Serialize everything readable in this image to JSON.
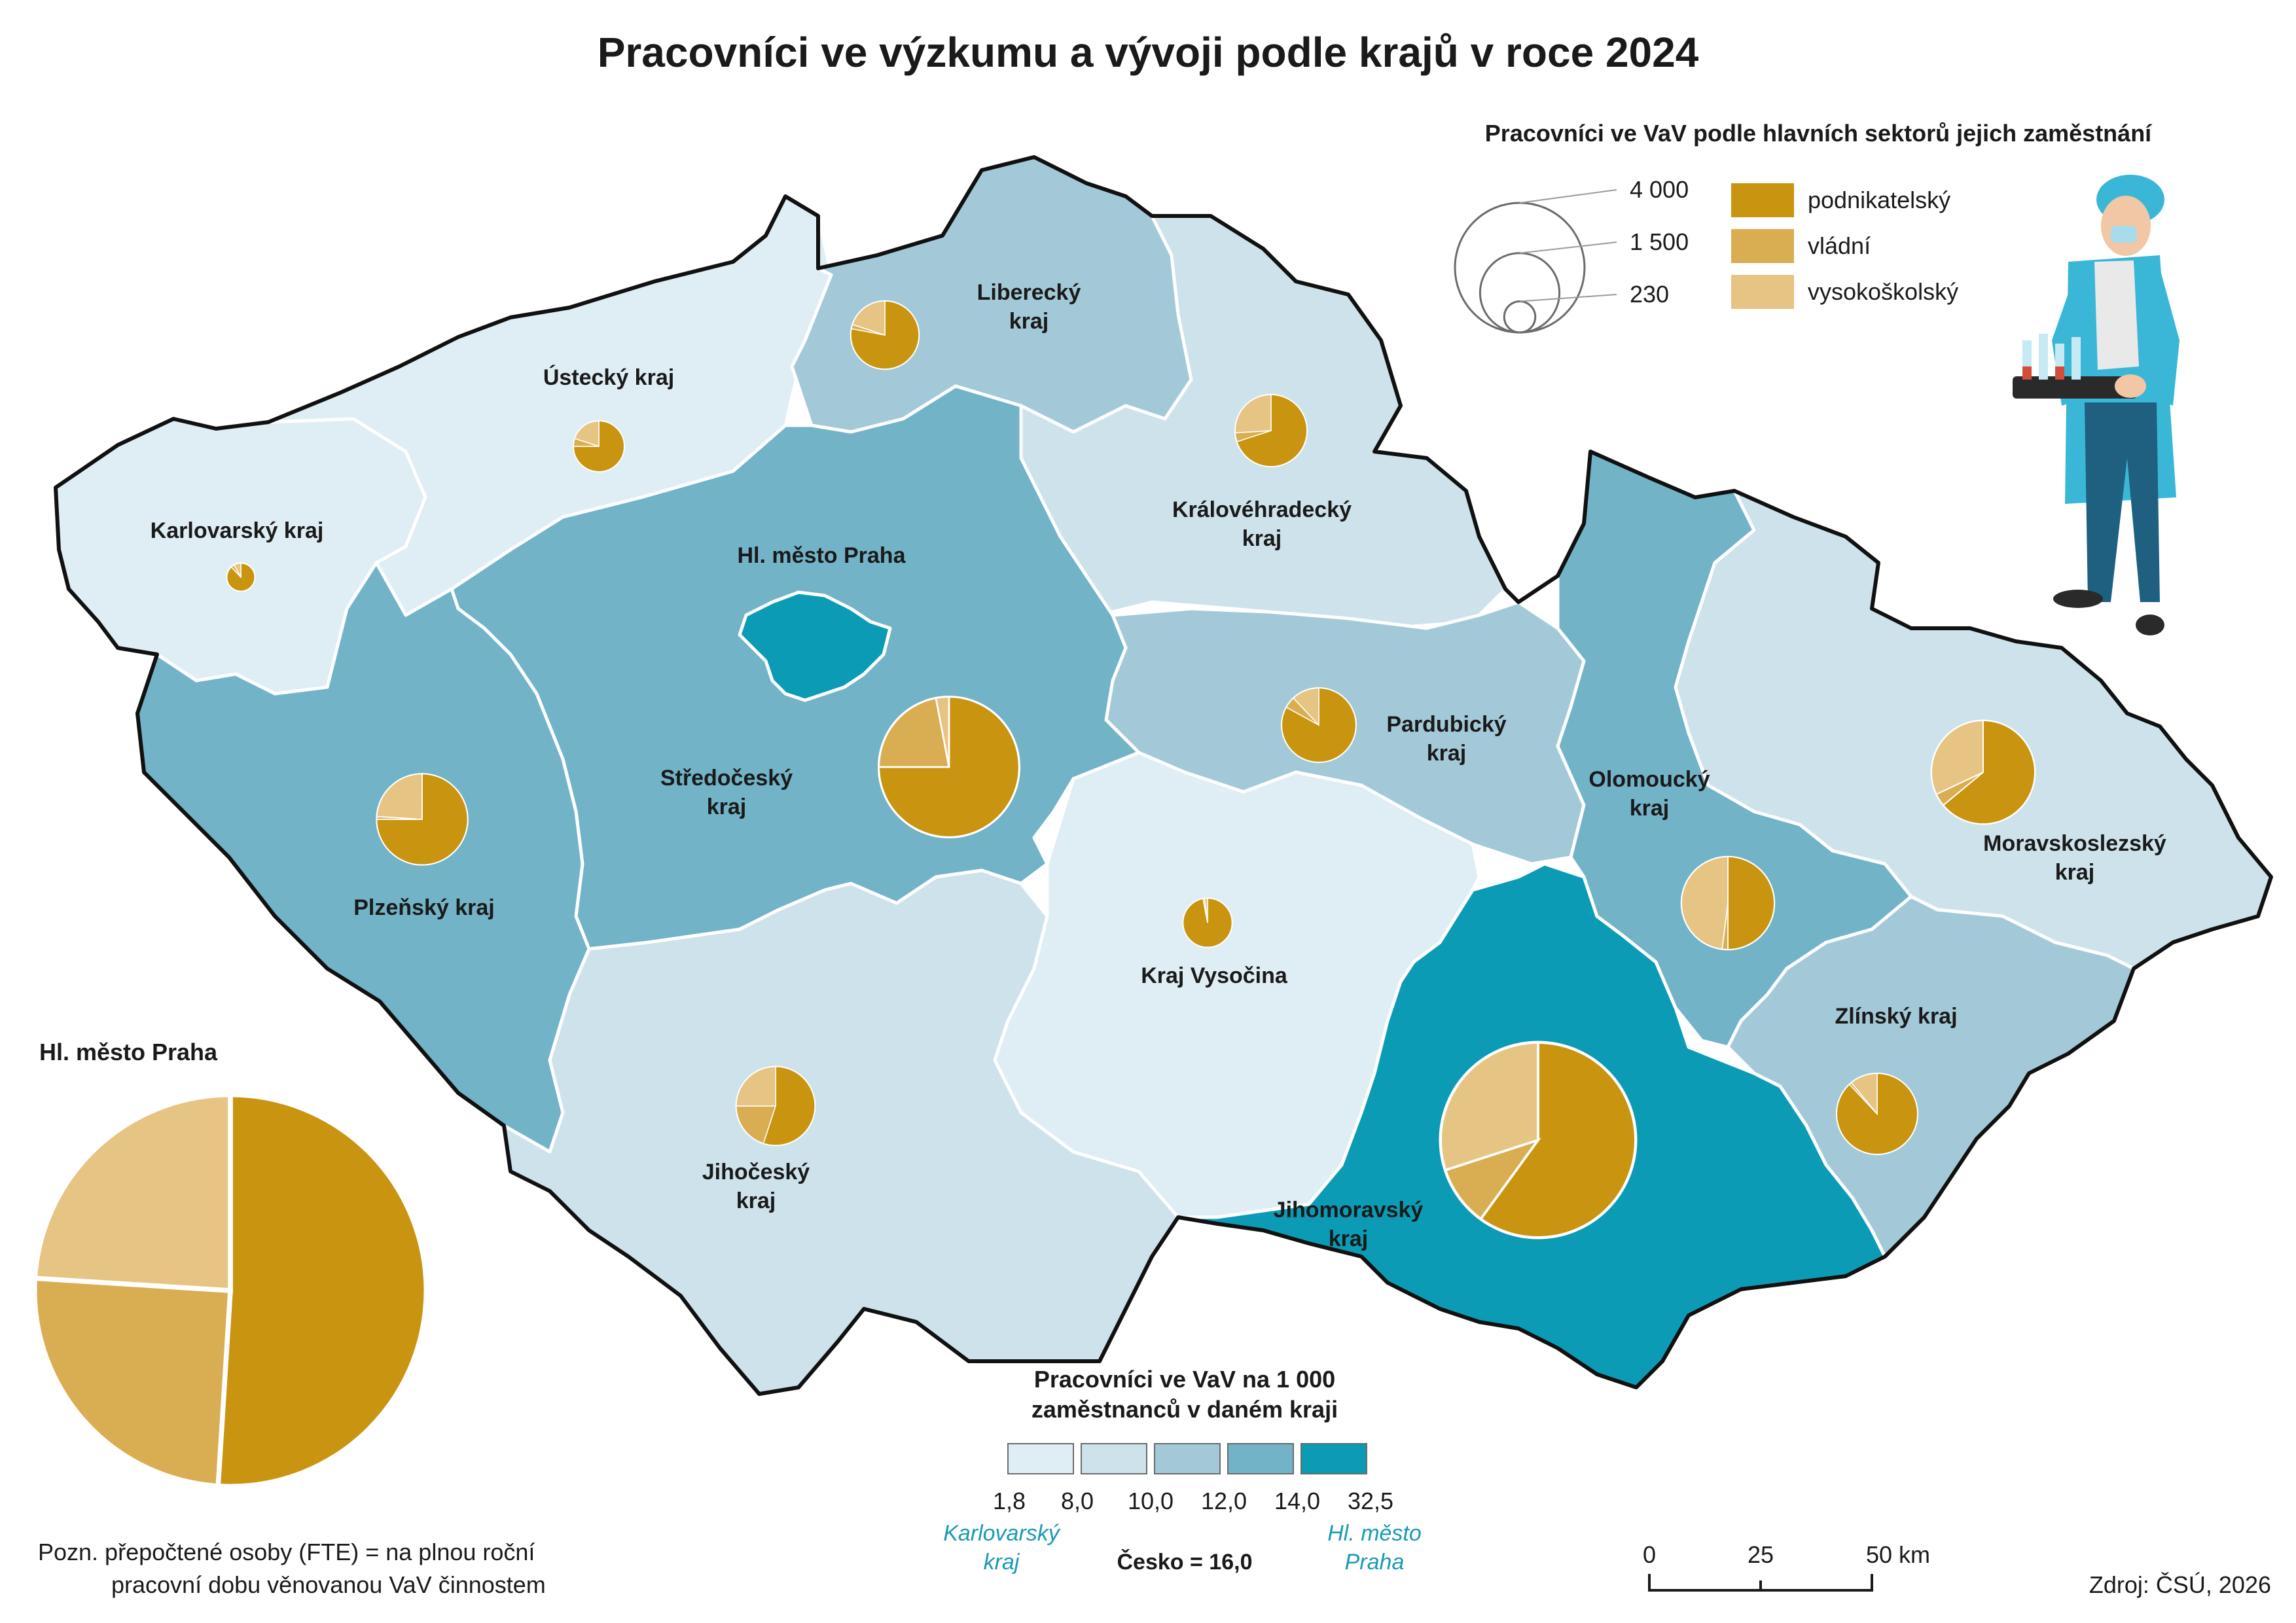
{
  "title": "Pracovníci ve výzkumu a vývoji podle krajů v roce 2024",
  "colors": {
    "c1": "#dfedf4",
    "c2": "#cde2eb",
    "c3": "#a3c9d8",
    "c4": "#72b3c8",
    "c5": "#0b9bb5",
    "podnikatelsky": "#c99410",
    "vladni": "#d9ae52",
    "vysokoskolsky": "#e6c483",
    "teal_text": "#1a9ab5"
  },
  "regions": [
    {
      "name_lines": [
        "Karlovarský kraj"
      ],
      "class": "c1",
      "total": 230,
      "shares": [
        0.88,
        0.04,
        0.08
      ]
    },
    {
      "name_lines": [
        "Ústecký kraj"
      ],
      "class": "c1",
      "total": 750,
      "shares": [
        0.75,
        0.05,
        0.2
      ]
    },
    {
      "name_lines": [
        "Liberecký",
        "kraj"
      ],
      "class": "c3",
      "total": 1350,
      "shares": [
        0.78,
        0.02,
        0.2
      ]
    },
    {
      "name_lines": [
        "Královéhradecký",
        "kraj"
      ],
      "class": "c2",
      "total": 1500,
      "shares": [
        0.7,
        0.04,
        0.26
      ]
    },
    {
      "name_lines": [
        "Pardubický",
        "kraj"
      ],
      "class": "c3",
      "total": 1600,
      "shares": [
        0.83,
        0.05,
        0.12
      ]
    },
    {
      "name_lines": [
        "Hl. město Praha"
      ],
      "class": "c5",
      "total": 0,
      "shares": []
    },
    {
      "name_lines": [
        "Středočeský",
        "kraj"
      ],
      "class": "c4",
      "total": 5700,
      "shares": [
        0.75,
        0.22,
        0.03
      ]
    },
    {
      "name_lines": [
        "Plzeňský kraj"
      ],
      "class": "c4",
      "total": 2400,
      "shares": [
        0.75,
        0.01,
        0.24
      ]
    },
    {
      "name_lines": [
        "Jihočeský",
        "kraj"
      ],
      "class": "c2",
      "total": 1800,
      "shares": [
        0.55,
        0.2,
        0.25
      ]
    },
    {
      "name_lines": [
        "Kraj Vysočina"
      ],
      "class": "c1",
      "total": 700,
      "shares": [
        0.97,
        0.01,
        0.02
      ]
    },
    {
      "name_lines": [
        "Jihomoravský",
        "kraj"
      ],
      "class": "c5",
      "total": 11000,
      "shares": [
        0.6,
        0.1,
        0.3
      ]
    },
    {
      "name_lines": [
        "Olomoucký",
        "kraj"
      ],
      "class": "c4",
      "total": 2500,
      "shares": [
        0.5,
        0.02,
        0.48
      ]
    },
    {
      "name_lines": [
        "Zlínský kraj"
      ],
      "class": "c3",
      "total": 1900,
      "shares": [
        0.88,
        0.01,
        0.11
      ]
    },
    {
      "name_lines": [
        "Moravskoslezský",
        "kraj"
      ],
      "class": "c2",
      "total": 3100,
      "shares": [
        0.64,
        0.04,
        0.32
      ]
    }
  ],
  "praha_inset": {
    "label": "Hl. město Praha",
    "total": 22000,
    "shares": [
      0.51,
      0.25,
      0.24
    ]
  },
  "size_legend": {
    "title": "Pracovníci ve VaV podle hlavních sektorů jejich zaměstnání",
    "values": [
      "4 000",
      "1 500",
      "230"
    ]
  },
  "sector_legend": [
    {
      "label": "podnikatelský",
      "color": "#c99410"
    },
    {
      "label": "vládní",
      "color": "#d9ae52"
    },
    {
      "label": "vysokoškolský",
      "color": "#e6c483"
    }
  ],
  "class_legend": {
    "title_lines": [
      "Pracovníci ve VaV na 1 000",
      "zaměstnanců v daném kraji"
    ],
    "breaks": [
      "1,8",
      "8,0",
      "10,0",
      "12,0",
      "14,0",
      "32,5"
    ],
    "min_label_lines": [
      "Karlovarský",
      "kraj"
    ],
    "max_label_lines": [
      "Hl. město",
      "Praha"
    ],
    "cesko": "Česko = 16,0"
  },
  "scalebar": {
    "ticks": [
      "0",
      "25",
      "50 km"
    ]
  },
  "note_lines": [
    "Pozn. přepočtené osoby (FTE) = na plnou roční",
    "pracovní dobu věnovanou VaV činnostem"
  ],
  "source": "Zdroj: ČSÚ, 2026"
}
